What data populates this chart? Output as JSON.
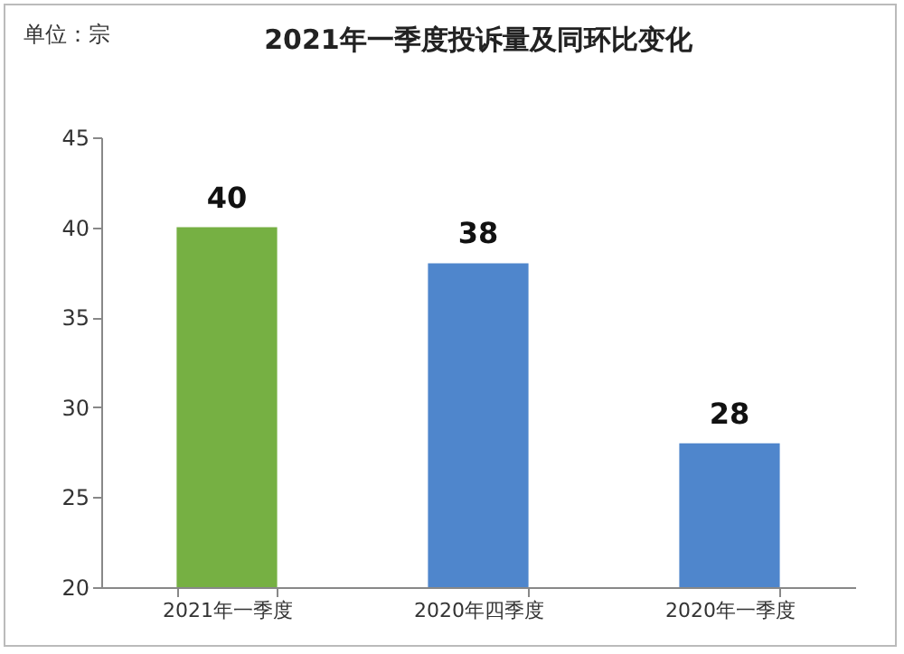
{
  "chart_data": {
    "type": "bar",
    "title": "2021年一季度投诉量及同环比变化",
    "annotations": [
      "单位：宗"
    ],
    "categories": [
      "2021年一季度",
      "2020年四季度",
      "2020年一季度"
    ],
    "values": [
      40,
      38,
      28
    ],
    "colors": [
      "#76b043",
      "#4f86cc",
      "#4f86cc"
    ],
    "ylim": [
      20,
      45
    ],
    "yticks": [
      20,
      25,
      30,
      35,
      40,
      45
    ],
    "data_labels": true
  }
}
